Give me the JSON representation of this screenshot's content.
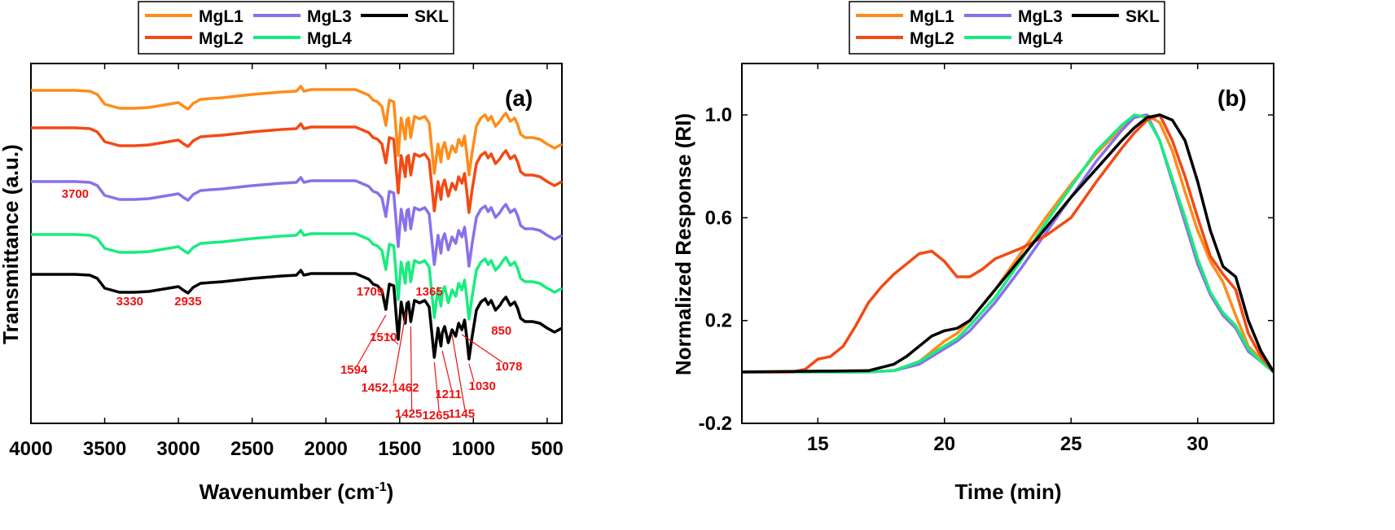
{
  "colors": {
    "MgL1": "#ff8c1a",
    "MgL2": "#f24a14",
    "MgL3": "#8a70ea",
    "MgL4": "#19ec7f",
    "SKL": "#000000",
    "annotation": "#ee1111"
  },
  "chart_data": [
    {
      "type": "line",
      "panel_label": "(a)",
      "xlabel": "Wavenumber (cm",
      "xlabel_sup": "-1",
      "xlabel_end": ")",
      "ylabel": "Transmittance (a.u.)",
      "xlim": [
        4000,
        400
      ],
      "x_reversed": true,
      "yticks_shown": false,
      "xticks": [
        4000,
        3500,
        3000,
        2500,
        2000,
        1500,
        1000,
        500
      ],
      "legend": {
        "entries": [
          "MgL1",
          "MgL3",
          "SKL",
          "MgL2",
          "MgL4"
        ],
        "placement": "top-center-outside"
      },
      "series_order_top_to_bottom": [
        "MgL1",
        "MgL2",
        "MgL3",
        "MgL4",
        "SKL"
      ],
      "series": [
        {
          "name": "MgL1"
        },
        {
          "name": "MgL2"
        },
        {
          "name": "MgL3"
        },
        {
          "name": "MgL4"
        },
        {
          "name": "SKL"
        }
      ],
      "spectrum_shape": {
        "x": [
          4000,
          3700,
          3600,
          3550,
          3500,
          3400,
          3300,
          3200,
          3100,
          3000,
          2970,
          2935,
          2900,
          2850,
          2700,
          2500,
          2300,
          2200,
          2170,
          2150,
          2100,
          2000,
          1900,
          1800,
          1760,
          1709,
          1680,
          1650,
          1620,
          1594,
          1570,
          1540,
          1510,
          1490,
          1462,
          1452,
          1440,
          1425,
          1400,
          1365,
          1330,
          1300,
          1265,
          1240,
          1220,
          1211,
          1195,
          1170,
          1145,
          1120,
          1100,
          1078,
          1060,
          1045,
          1030,
          1010,
          980,
          950,
          920,
          900,
          880,
          850,
          820,
          800,
          780,
          750,
          720,
          700,
          680,
          650,
          600,
          550,
          500,
          450,
          400
        ],
        "SKL": [
          0.0,
          0.0,
          -0.05,
          -0.25,
          -0.85,
          -1.1,
          -1.1,
          -1.05,
          -0.9,
          -0.75,
          -0.95,
          -1.15,
          -0.8,
          -0.55,
          -0.45,
          -0.25,
          -0.1,
          -0.05,
          0.25,
          -0.05,
          0.05,
          0.05,
          0.05,
          0.05,
          -0.1,
          -0.3,
          -0.6,
          -0.7,
          -1.0,
          -2.15,
          -0.6,
          -0.7,
          -4.0,
          -1.7,
          -3.0,
          -1.8,
          -1.7,
          -2.9,
          -1.6,
          -1.75,
          -1.6,
          -2.0,
          -5.1,
          -3.3,
          -4.4,
          -3.6,
          -3.2,
          -4.2,
          -3.4,
          -3.8,
          -3.0,
          -3.4,
          -2.8,
          -3.9,
          -5.2,
          -3.9,
          -2.2,
          -1.7,
          -1.5,
          -1.85,
          -1.6,
          -2.2,
          -1.9,
          -1.6,
          -1.4,
          -1.9,
          -1.7,
          -2.1,
          -2.7,
          -2.9,
          -2.9,
          -3.0,
          -3.3,
          -3.55,
          -3.3
        ],
        "offsets": {
          "MgL1": 11.3,
          "MgL2": 9.0,
          "MgL3": 5.7,
          "MgL4": 2.45,
          "SKL": 0.0
        }
      },
      "annotations": [
        {
          "text": "3700",
          "x": 3700,
          "series": "MgL3",
          "dy": -1.0
        },
        {
          "text": "3330",
          "x": 3330,
          "series": "SKL",
          "dy": -1.9
        },
        {
          "text": "2935",
          "x": 2935,
          "series": "SKL",
          "dy": -1.9
        },
        {
          "text": "1709",
          "x": 1700,
          "series": "SKL",
          "dy": -1.3
        },
        {
          "text": "1365",
          "x": 1300,
          "series": "SKL",
          "dy": -1.3
        },
        {
          "text": "850",
          "x": 810,
          "series": "SKL",
          "dy": -3.7
        },
        {
          "text": "1594",
          "x": 1810,
          "series": "SKL",
          "dy": -6.1
        },
        {
          "text": "1510",
          "x": 1610,
          "series": "SKL",
          "dy": -4.1
        },
        {
          "text": "1452,1462",
          "x": 1565,
          "series": "SKL",
          "dy": -7.2
        },
        {
          "text": "1425",
          "x": 1440,
          "series": "SKL",
          "dy": -8.8
        },
        {
          "text": "1265",
          "x": 1255,
          "series": "SKL",
          "dy": -8.9
        },
        {
          "text": "1211",
          "x": 1170,
          "series": "SKL",
          "dy": -7.6
        },
        {
          "text": "1145",
          "x": 1080,
          "series": "SKL",
          "dy": -8.8
        },
        {
          "text": "1030",
          "x": 940,
          "series": "SKL",
          "dy": -7.1
        },
        {
          "text": "1078",
          "x": 760,
          "series": "SKL",
          "dy": -5.9
        }
      ]
    },
    {
      "type": "line",
      "panel_label": "(b)",
      "xlabel": "Time (min)",
      "ylabel": "Normalized Response (RI)",
      "xlim": [
        12,
        33
      ],
      "ylim": [
        -0.2,
        1.2
      ],
      "xticks": [
        15,
        20,
        25,
        30
      ],
      "yticks": [
        -0.2,
        0.2,
        0.6,
        1.0
      ],
      "ytick_labels": [
        "-0.2",
        "0.2",
        "0.6",
        "1.0"
      ],
      "legend": {
        "entries": [
          "MgL1",
          "MgL3",
          "SKL",
          "MgL2",
          "MgL4"
        ],
        "placement": "top-center-outside"
      },
      "series": [
        {
          "name": "MgL1",
          "x": [
            12,
            17,
            18,
            19,
            19.5,
            20,
            20.5,
            21,
            22,
            23,
            24,
            25,
            26,
            27,
            27.5,
            28,
            28.5,
            29,
            29.5,
            30,
            30.5,
            31,
            31.5,
            32,
            32.5,
            33
          ],
          "y": [
            0.0,
            0.0,
            0.005,
            0.04,
            0.08,
            0.12,
            0.15,
            0.2,
            0.32,
            0.46,
            0.6,
            0.73,
            0.85,
            0.95,
            0.99,
            1.0,
            0.97,
            0.86,
            0.7,
            0.55,
            0.43,
            0.35,
            0.22,
            0.1,
            0.05,
            0.0
          ]
        },
        {
          "name": "MgL2",
          "x": [
            12,
            14,
            14.5,
            15,
            15.5,
            16,
            16.5,
            17,
            17.5,
            18,
            18.5,
            19,
            19.5,
            20,
            20.5,
            21,
            21.5,
            22,
            23,
            24,
            25,
            26,
            27,
            27.5,
            28,
            28.5,
            29,
            29.5,
            30,
            30.5,
            31,
            31.5,
            32,
            32.5,
            33
          ],
          "y": [
            0.0,
            0.0,
            0.01,
            0.05,
            0.06,
            0.1,
            0.18,
            0.27,
            0.33,
            0.38,
            0.42,
            0.46,
            0.47,
            0.43,
            0.37,
            0.37,
            0.4,
            0.44,
            0.48,
            0.53,
            0.6,
            0.74,
            0.87,
            0.93,
            0.98,
            1.0,
            0.9,
            0.76,
            0.6,
            0.45,
            0.38,
            0.32,
            0.15,
            0.06,
            0.0
          ]
        },
        {
          "name": "MgL3",
          "x": [
            12,
            17,
            18,
            19,
            19.5,
            20,
            20.5,
            21,
            22,
            23,
            24,
            25,
            26,
            27,
            27.5,
            28,
            28.5,
            29,
            29.5,
            30,
            30.5,
            31,
            31.5,
            32,
            32.5,
            33
          ],
          "y": [
            0.0,
            0.0,
            0.005,
            0.03,
            0.06,
            0.09,
            0.12,
            0.16,
            0.27,
            0.4,
            0.54,
            0.68,
            0.82,
            0.94,
            0.99,
            1.0,
            0.9,
            0.74,
            0.58,
            0.42,
            0.3,
            0.22,
            0.17,
            0.08,
            0.04,
            0.0
          ]
        },
        {
          "name": "MgL4",
          "x": [
            12,
            17,
            18,
            19,
            19.5,
            20,
            20.5,
            21,
            22,
            23,
            24,
            25,
            26,
            27,
            27.5,
            28,
            28.5,
            29,
            29.5,
            30,
            30.5,
            31,
            31.5,
            32,
            32.5,
            33
          ],
          "y": [
            0.0,
            0.0,
            0.005,
            0.04,
            0.07,
            0.1,
            0.13,
            0.18,
            0.29,
            0.43,
            0.58,
            0.72,
            0.86,
            0.96,
            1.0,
            0.99,
            0.9,
            0.75,
            0.6,
            0.44,
            0.31,
            0.23,
            0.18,
            0.09,
            0.04,
            0.0
          ]
        },
        {
          "name": "SKL",
          "x": [
            12,
            17,
            18,
            18.5,
            19,
            19.5,
            20,
            20.5,
            21,
            22,
            23,
            24,
            25,
            26,
            27,
            27.5,
            28,
            28.5,
            29,
            29.5,
            30,
            30.5,
            31,
            31.5,
            32,
            32.5,
            33
          ],
          "y": [
            0.0,
            0.005,
            0.03,
            0.06,
            0.1,
            0.14,
            0.16,
            0.17,
            0.2,
            0.32,
            0.44,
            0.56,
            0.68,
            0.79,
            0.9,
            0.95,
            0.99,
            1.0,
            0.98,
            0.9,
            0.74,
            0.55,
            0.41,
            0.37,
            0.2,
            0.08,
            0.0
          ]
        }
      ]
    }
  ]
}
